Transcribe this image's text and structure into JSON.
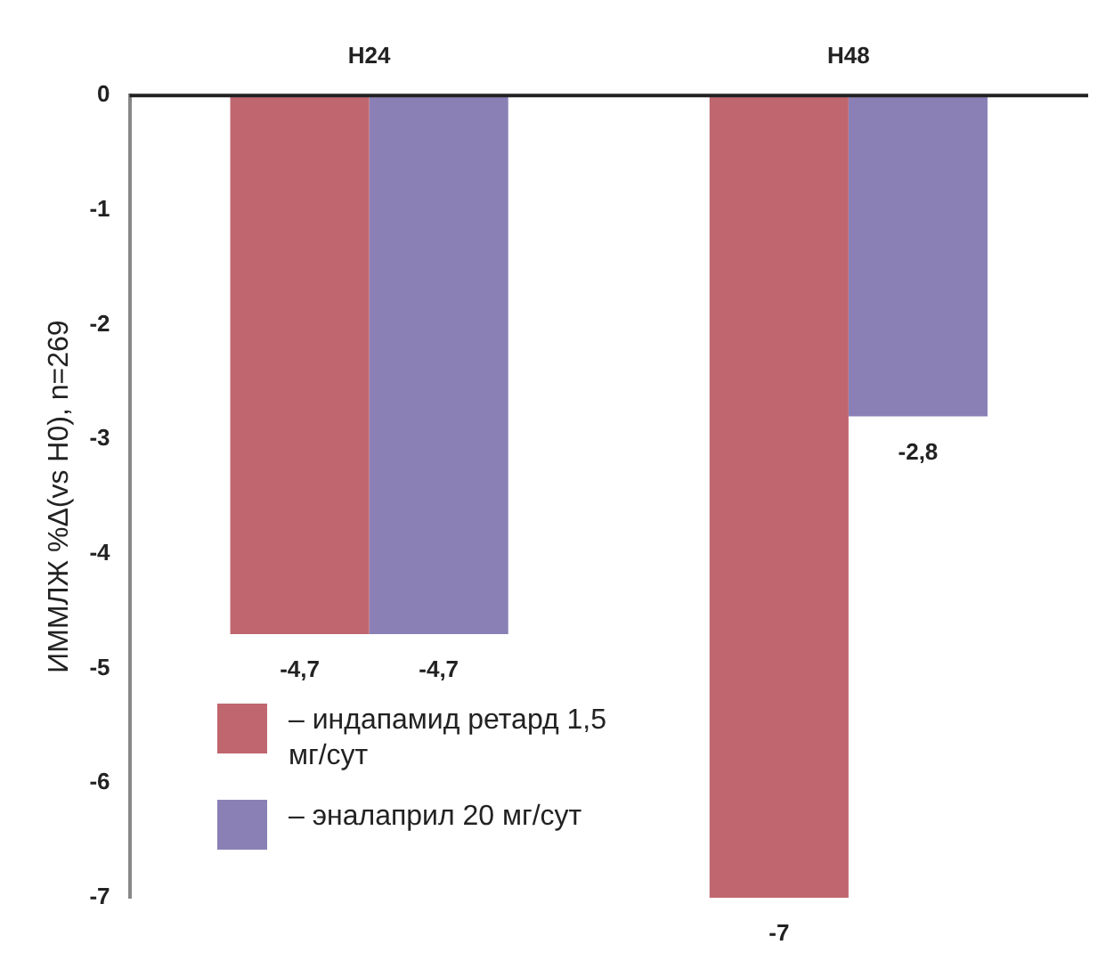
{
  "chart_data": {
    "type": "bar",
    "ylabel": "ИММЛЖ %Δ(vs H0), n=269",
    "categories": [
      "H24",
      "H48"
    ],
    "series": [
      {
        "name": "– индапамид ретард 1,5 мг/сут",
        "color": "#c0666f",
        "values": [
          -4.7,
          -7
        ],
        "value_labels": [
          "-4,7",
          "-7"
        ]
      },
      {
        "name": "– эналаприл 20 мг/сут",
        "color": "#8a80b6",
        "values": [
          -4.7,
          -2.8
        ],
        "value_labels": [
          "-4,7",
          "-2,8"
        ]
      }
    ],
    "ylim": [
      -7,
      0
    ],
    "yticks": [
      -7,
      -6,
      -5,
      -4,
      -3,
      -2,
      -1,
      0
    ],
    "grid": false,
    "legend": "bottom left"
  }
}
